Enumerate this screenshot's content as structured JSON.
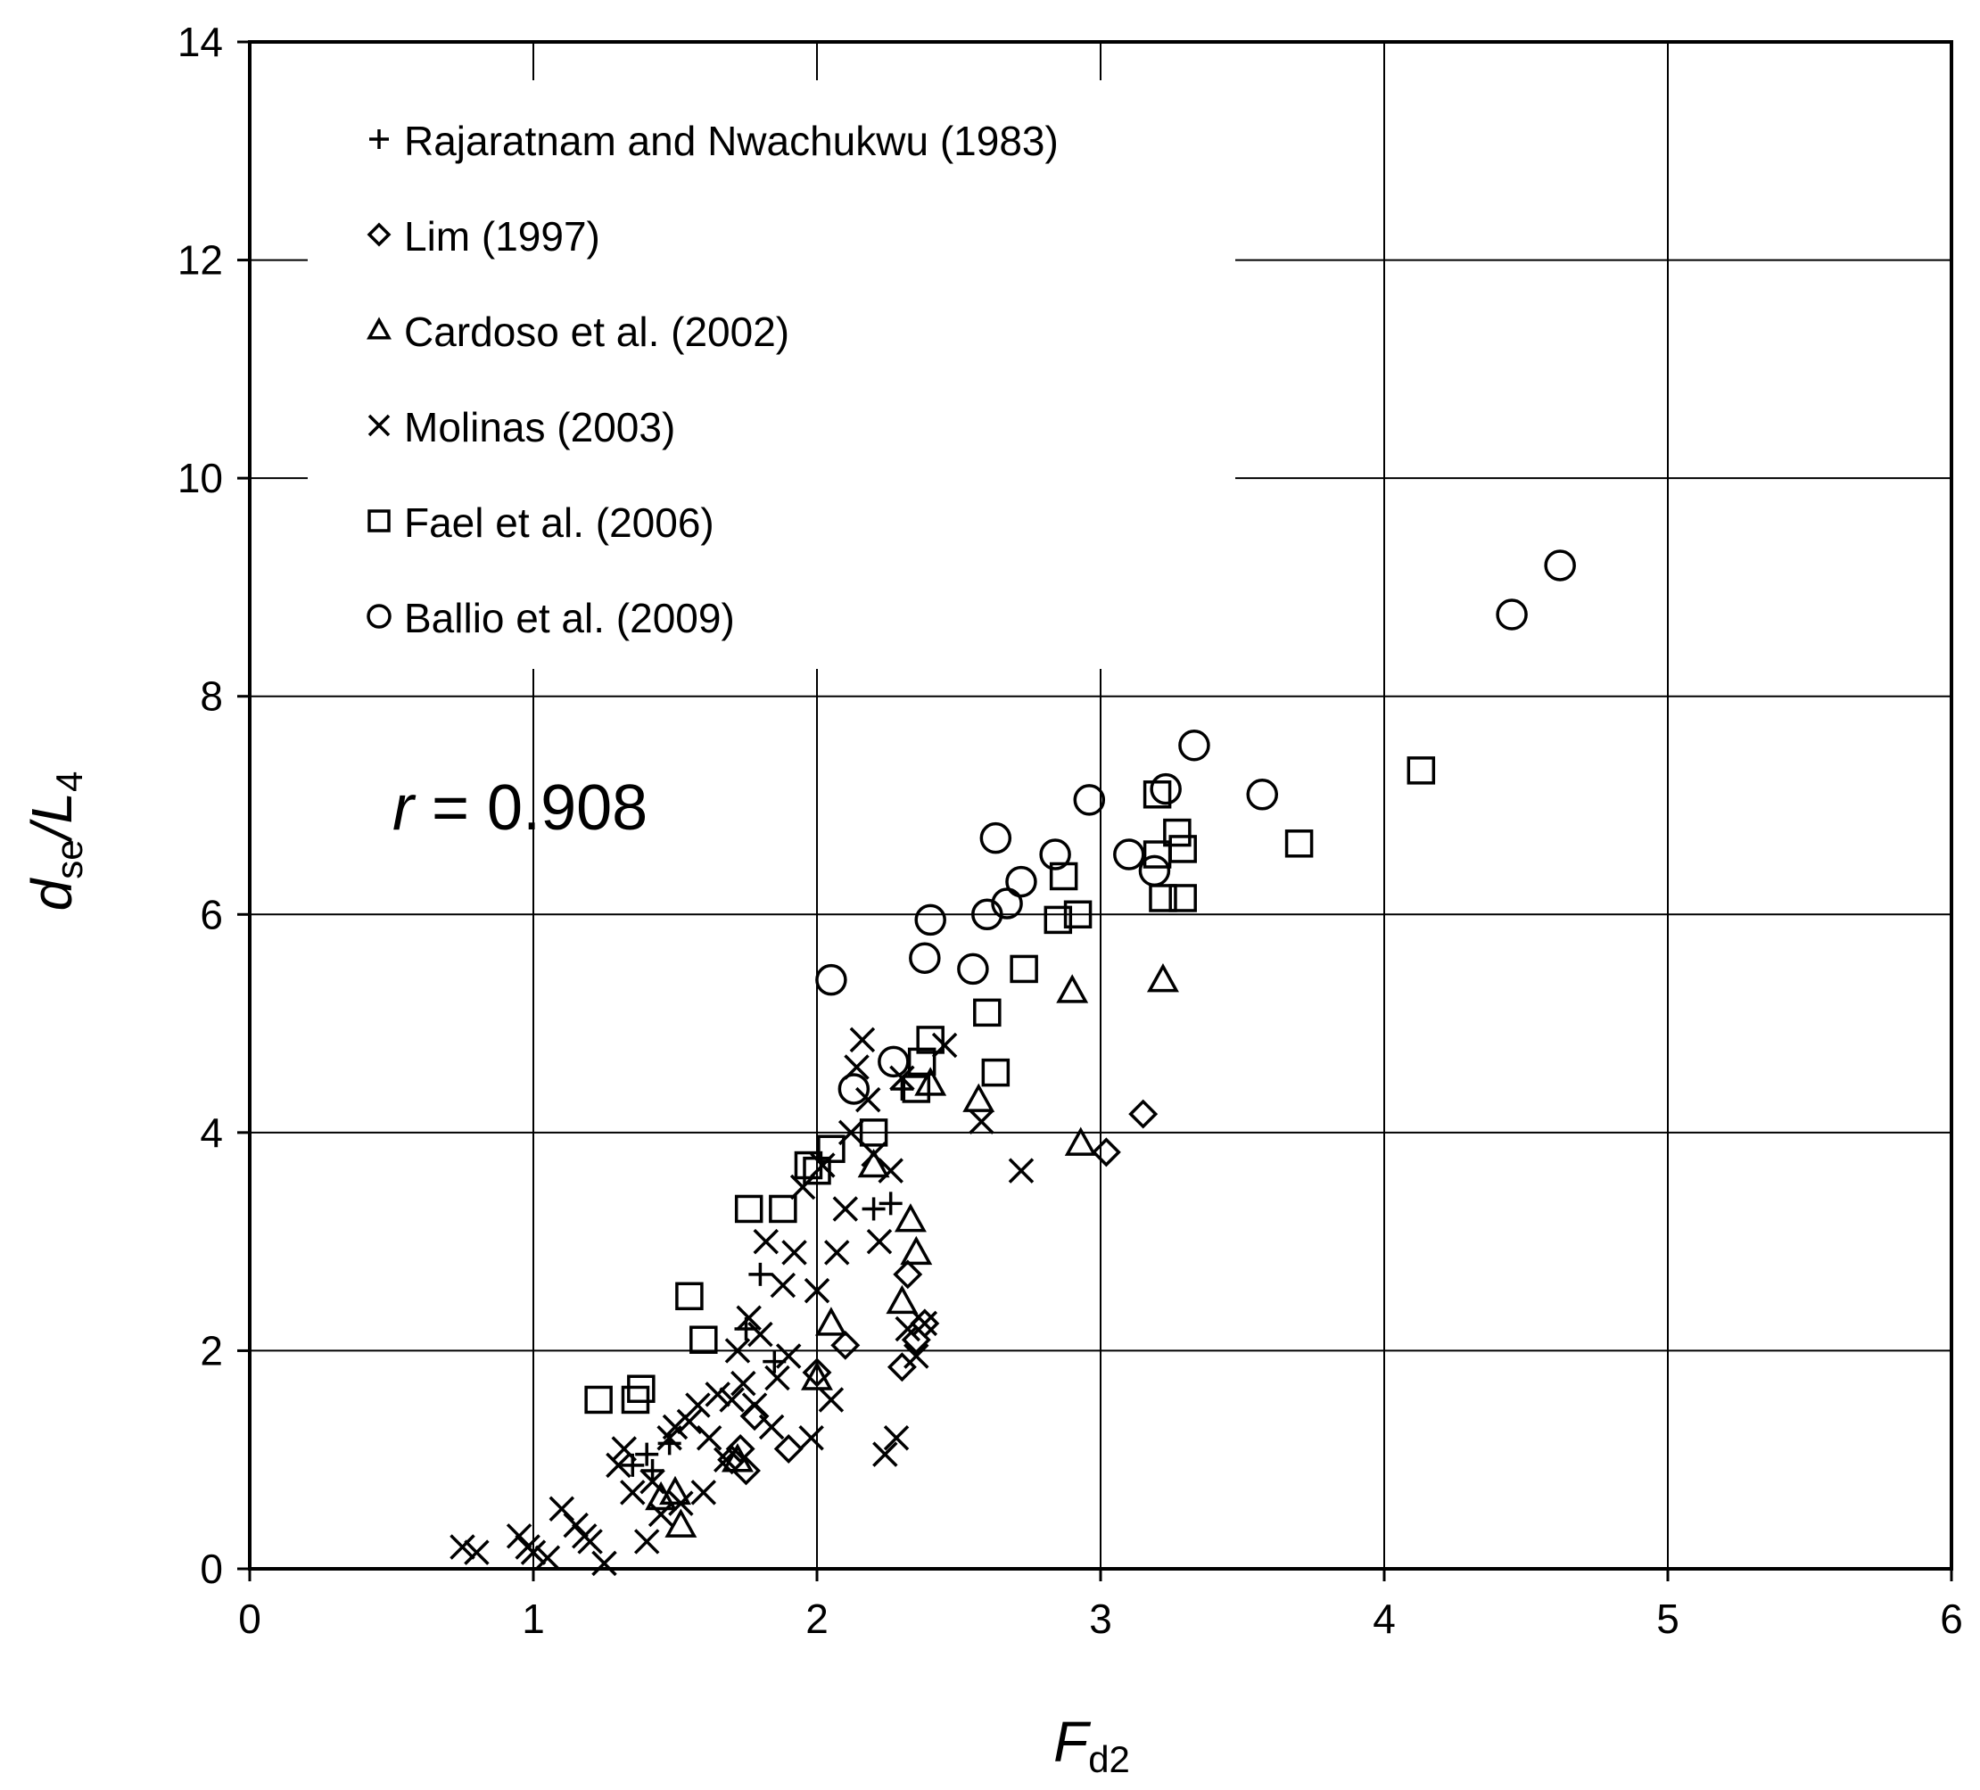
{
  "chart_data": {
    "type": "scatter",
    "xlim": [
      0,
      6
    ],
    "ylim": [
      0,
      14
    ],
    "xticks": [
      "0",
      "1",
      "2",
      "3",
      "4",
      "5",
      "6"
    ],
    "yticks": [
      "0",
      "2",
      "4",
      "6",
      "8",
      "10",
      "12",
      "14"
    ],
    "xlabel": {
      "main": "F",
      "sub": "d2"
    },
    "ylabel": {
      "main": "d",
      "sub": "se",
      "rest": "/L",
      "sub2": "4"
    },
    "grid": true,
    "legend_placement": "top-left",
    "annotation": {
      "var": "r",
      "rest": " = 0.908"
    },
    "series": [
      {
        "name": "Rajaratnam and Nwachukwu (1983)",
        "marker": "plus",
        "points": [
          [
            1.35,
            0.95
          ],
          [
            1.4,
            1.05
          ],
          [
            1.42,
            0.9
          ],
          [
            1.48,
            1.15
          ],
          [
            1.75,
            2.2
          ],
          [
            1.8,
            2.7
          ],
          [
            1.85,
            1.9
          ],
          [
            2.2,
            3.3
          ],
          [
            2.26,
            3.35
          ],
          [
            2.3,
            4.4
          ]
        ]
      },
      {
        "name": "Lim (1997)",
        "marker": "diamond",
        "points": [
          [
            1.7,
            1.0
          ],
          [
            1.73,
            1.1
          ],
          [
            1.75,
            0.9
          ],
          [
            1.78,
            1.4
          ],
          [
            1.9,
            1.1
          ],
          [
            2.0,
            1.8
          ],
          [
            2.1,
            2.05
          ],
          [
            2.3,
            1.85
          ],
          [
            2.32,
            2.7
          ],
          [
            2.35,
            2.1
          ],
          [
            2.38,
            2.25
          ],
          [
            3.02,
            3.82
          ],
          [
            3.15,
            4.17
          ]
        ]
      },
      {
        "name": "Cardoso et al. (2002)",
        "marker": "triangle",
        "points": [
          [
            1.45,
            0.65
          ],
          [
            1.5,
            0.7
          ],
          [
            1.52,
            0.4
          ],
          [
            1.72,
            1.0
          ],
          [
            2.0,
            1.75
          ],
          [
            2.05,
            2.25
          ],
          [
            2.2,
            3.7
          ],
          [
            2.3,
            2.45
          ],
          [
            2.33,
            3.2
          ],
          [
            2.35,
            2.9
          ],
          [
            2.4,
            4.45
          ],
          [
            2.57,
            4.3
          ],
          [
            2.9,
            5.3
          ],
          [
            2.93,
            3.9
          ],
          [
            3.22,
            5.4
          ]
        ]
      },
      {
        "name": "Molinas (2003)",
        "marker": "x",
        "points": [
          [
            0.75,
            0.2
          ],
          [
            0.8,
            0.15
          ],
          [
            0.95,
            0.3
          ],
          [
            0.98,
            0.2
          ],
          [
            1.0,
            0.15
          ],
          [
            1.05,
            0.1
          ],
          [
            1.1,
            0.55
          ],
          [
            1.15,
            0.4
          ],
          [
            1.18,
            0.3
          ],
          [
            1.2,
            0.25
          ],
          [
            1.25,
            0.05
          ],
          [
            1.3,
            0.95
          ],
          [
            1.32,
            1.1
          ],
          [
            1.35,
            0.7
          ],
          [
            1.4,
            0.25
          ],
          [
            1.42,
            0.8
          ],
          [
            1.45,
            0.5
          ],
          [
            1.48,
            1.2
          ],
          [
            1.5,
            1.3
          ],
          [
            1.52,
            0.6
          ],
          [
            1.55,
            1.35
          ],
          [
            1.58,
            1.5
          ],
          [
            1.6,
            0.7
          ],
          [
            1.62,
            1.2
          ],
          [
            1.65,
            1.6
          ],
          [
            1.68,
            1.0
          ],
          [
            1.7,
            1.55
          ],
          [
            1.72,
            2.0
          ],
          [
            1.74,
            1.7
          ],
          [
            1.76,
            2.3
          ],
          [
            1.78,
            1.5
          ],
          [
            1.8,
            2.15
          ],
          [
            1.82,
            3.0
          ],
          [
            1.84,
            1.3
          ],
          [
            1.86,
            1.75
          ],
          [
            1.88,
            2.6
          ],
          [
            1.9,
            1.95
          ],
          [
            1.92,
            2.9
          ],
          [
            1.95,
            3.5
          ],
          [
            1.98,
            1.2
          ],
          [
            2.0,
            2.55
          ],
          [
            2.02,
            3.7
          ],
          [
            2.05,
            1.55
          ],
          [
            2.07,
            2.9
          ],
          [
            2.1,
            3.3
          ],
          [
            2.12,
            4.0
          ],
          [
            2.14,
            4.6
          ],
          [
            2.16,
            4.85
          ],
          [
            2.18,
            4.3
          ],
          [
            2.2,
            3.8
          ],
          [
            2.22,
            3.0
          ],
          [
            2.24,
            1.05
          ],
          [
            2.26,
            3.65
          ],
          [
            2.28,
            1.2
          ],
          [
            2.3,
            4.5
          ],
          [
            2.32,
            2.2
          ],
          [
            2.35,
            1.95
          ],
          [
            2.38,
            2.25
          ],
          [
            2.45,
            4.8
          ],
          [
            2.58,
            4.1
          ],
          [
            2.72,
            3.65
          ]
        ]
      },
      {
        "name": "Fael et al. (2006)",
        "marker": "square",
        "points": [
          [
            1.23,
            1.55
          ],
          [
            1.36,
            1.55
          ],
          [
            1.38,
            1.65
          ],
          [
            1.55,
            2.5
          ],
          [
            1.6,
            2.1
          ],
          [
            1.76,
            3.3
          ],
          [
            1.88,
            3.3
          ],
          [
            1.97,
            3.7
          ],
          [
            2.0,
            3.65
          ],
          [
            2.05,
            3.85
          ],
          [
            2.2,
            4.0
          ],
          [
            2.35,
            4.4
          ],
          [
            2.37,
            4.65
          ],
          [
            2.4,
            4.85
          ],
          [
            2.6,
            5.1
          ],
          [
            2.63,
            4.55
          ],
          [
            2.73,
            5.5
          ],
          [
            2.85,
            5.95
          ],
          [
            2.87,
            6.35
          ],
          [
            2.92,
            6.0
          ],
          [
            3.2,
            7.1
          ],
          [
            3.2,
            6.55
          ],
          [
            3.22,
            6.15
          ],
          [
            3.27,
            6.75
          ],
          [
            3.29,
            6.6
          ],
          [
            3.29,
            6.15
          ],
          [
            3.7,
            6.65
          ],
          [
            4.13,
            7.32
          ]
        ]
      },
      {
        "name": "Ballio et al. (2009)",
        "marker": "circle",
        "points": [
          [
            2.05,
            5.4
          ],
          [
            2.13,
            4.4
          ],
          [
            2.27,
            4.65
          ],
          [
            2.38,
            5.6
          ],
          [
            2.4,
            5.95
          ],
          [
            2.55,
            5.5
          ],
          [
            2.6,
            6.0
          ],
          [
            2.63,
            6.7
          ],
          [
            2.67,
            6.1
          ],
          [
            2.72,
            6.3
          ],
          [
            2.84,
            6.55
          ],
          [
            2.96,
            7.05
          ],
          [
            3.1,
            6.55
          ],
          [
            3.19,
            6.4
          ],
          [
            3.23,
            7.15
          ],
          [
            3.33,
            7.55
          ],
          [
            3.57,
            7.1
          ],
          [
            4.45,
            8.75
          ],
          [
            4.62,
            9.2
          ]
        ]
      }
    ]
  }
}
